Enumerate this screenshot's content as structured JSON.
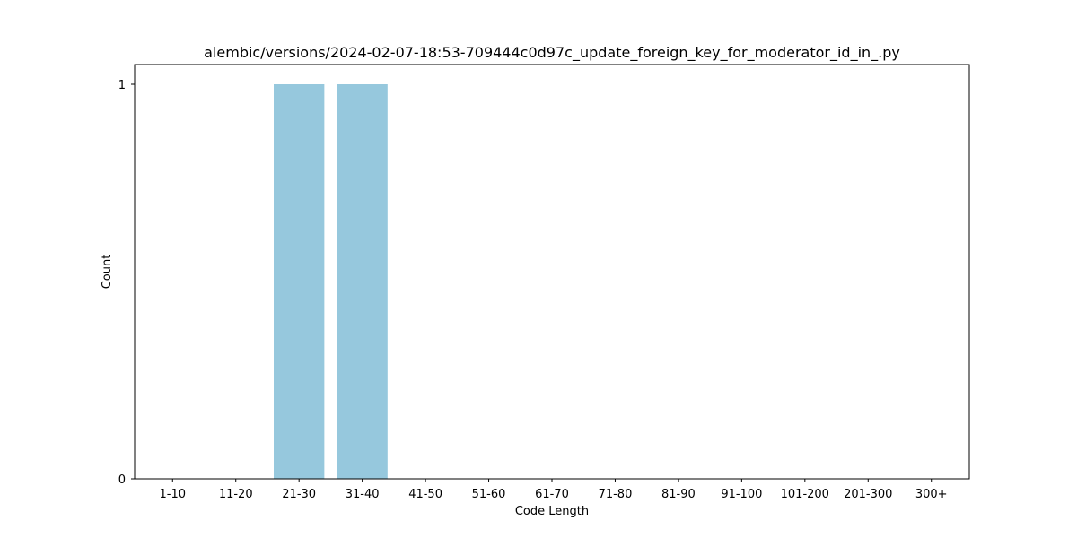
{
  "chart_data": {
    "type": "bar",
    "title": "alembic/versions/2024-02-07-18:53-709444c0d97c_update_foreign_key_for_moderator_id_in_.py",
    "xlabel": "Code Length",
    "ylabel": "Count",
    "categories": [
      "1-10",
      "11-20",
      "21-30",
      "31-40",
      "41-50",
      "51-60",
      "61-70",
      "71-80",
      "81-90",
      "91-100",
      "101-200",
      "201-300",
      "300+"
    ],
    "values": [
      0,
      0,
      1,
      1,
      0,
      0,
      0,
      0,
      0,
      0,
      0,
      0,
      0
    ],
    "ylim": [
      0,
      1.05
    ],
    "yticks": [
      0,
      1
    ],
    "bar_color": "#96c8dd",
    "grid": false,
    "legend": "none"
  }
}
